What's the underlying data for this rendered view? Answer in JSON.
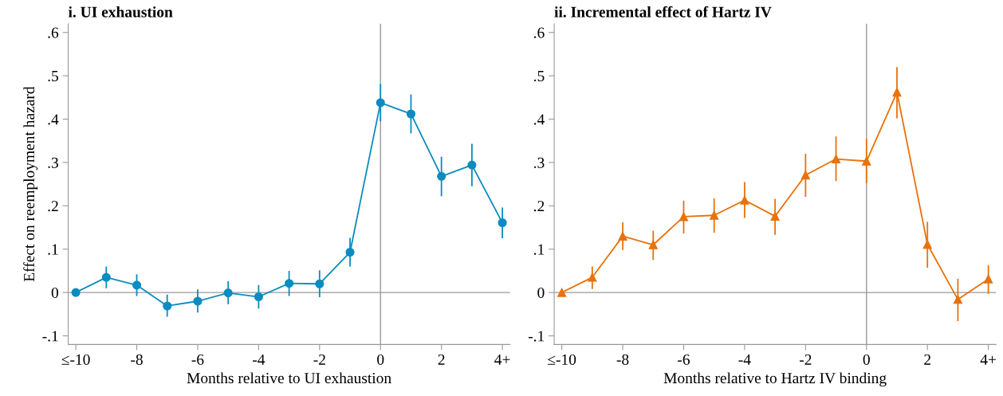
{
  "chart_data": [
    {
      "type": "line",
      "title": "i. UI exhaustion",
      "xlabel": "Months relative to UI exhaustion",
      "ylabel": "Effect on reemployment hazard",
      "marker": "circle",
      "line_style": "solid",
      "grid": false,
      "legend": false,
      "x": [
        -10,
        -9,
        -8,
        -7,
        -6,
        -5,
        -4,
        -3,
        -2,
        -1,
        0,
        1,
        2,
        3,
        4
      ],
      "series": [
        {
          "color": "#0b8cc1",
          "values": [
            0,
            0.035,
            0.017,
            -0.031,
            -0.02,
            -0.001,
            -0.01,
            0.021,
            0.02,
            0.093,
            0.438,
            0.412,
            0.268,
            0.294,
            0.161
          ],
          "errors": [
            null,
            [
              0.01,
              0.06
            ],
            [
              -0.008,
              0.042
            ],
            [
              -0.056,
              -0.005
            ],
            [
              -0.046,
              0.007
            ],
            [
              -0.027,
              0.026
            ],
            [
              -0.037,
              0.017
            ],
            [
              -0.008,
              0.05
            ],
            [
              -0.011,
              0.051
            ],
            [
              0.06,
              0.126
            ],
            [
              0.395,
              0.481
            ],
            [
              0.367,
              0.457
            ],
            [
              0.222,
              0.313
            ],
            [
              0.245,
              0.343
            ],
            [
              0.125,
              0.196
            ]
          ]
        }
      ],
      "xlim": [
        -10.25,
        4.25
      ],
      "ylim": [
        -0.12,
        0.62
      ],
      "xticks": [
        {
          "value": -10,
          "label": "≤-10"
        },
        {
          "value": -8,
          "label": "-8"
        },
        {
          "value": -6,
          "label": "-6"
        },
        {
          "value": -4,
          "label": "-4"
        },
        {
          "value": -2,
          "label": "-2"
        },
        0,
        2,
        {
          "value": 4,
          "label": "4+"
        }
      ],
      "yticks": [
        {
          "value": -0.1,
          "label": "-.1"
        },
        0,
        {
          "value": 0.1,
          "label": ".1"
        },
        {
          "value": 0.2,
          "label": ".2"
        },
        {
          "value": 0.3,
          "label": ".3"
        },
        {
          "value": 0.4,
          "label": ".4"
        },
        {
          "value": 0.5,
          "label": ".5"
        },
        {
          "value": 0.6,
          "label": ".6"
        }
      ],
      "ref_lines": [
        {
          "axis": "x",
          "value": 0,
          "color": "#999999"
        },
        {
          "axis": "y",
          "value": 0,
          "color": "#999999"
        }
      ]
    },
    {
      "type": "line",
      "title": "ii. Incremental effect of Hartz IV",
      "xlabel": "Months relative to Hartz IV binding",
      "marker": "triangle",
      "line_style": "solid",
      "grid": false,
      "legend": false,
      "x": [
        -10,
        -9,
        -8,
        -7,
        -6,
        -5,
        -4,
        -3,
        -2,
        -1,
        0,
        1,
        2,
        3,
        4
      ],
      "series": [
        {
          "color": "#e8720c",
          "values": [
            0,
            0.035,
            0.13,
            0.11,
            0.175,
            0.178,
            0.213,
            0.176,
            0.271,
            0.308,
            0.303,
            0.462,
            0.111,
            -0.016,
            0.031
          ],
          "errors": [
            null,
            [
              0.008,
              0.06
            ],
            [
              0.098,
              0.162
            ],
            [
              0.075,
              0.142
            ],
            [
              0.136,
              0.212
            ],
            [
              0.138,
              0.217
            ],
            [
              0.172,
              0.255
            ],
            [
              0.133,
              0.216
            ],
            [
              0.221,
              0.32
            ],
            [
              0.257,
              0.36
            ],
            [
              0.252,
              0.354
            ],
            [
              0.402,
              0.52
            ],
            [
              0.057,
              0.163
            ],
            [
              -0.066,
              0.032
            ],
            [
              -0.003,
              0.063
            ]
          ]
        }
      ],
      "xlim": [
        -10.25,
        4.25
      ],
      "ylim": [
        -0.12,
        0.62
      ],
      "xticks": [
        {
          "value": -10,
          "label": "≤-10"
        },
        {
          "value": -8,
          "label": "-8"
        },
        {
          "value": -6,
          "label": "-6"
        },
        {
          "value": -4,
          "label": "-4"
        },
        {
          "value": -2,
          "label": "-2"
        },
        0,
        2,
        {
          "value": 4,
          "label": "4+"
        }
      ],
      "yticks": [
        {
          "value": -0.1,
          "label": "-.1"
        },
        0,
        {
          "value": 0.1,
          "label": ".1"
        },
        {
          "value": 0.2,
          "label": ".2"
        },
        {
          "value": 0.3,
          "label": ".3"
        },
        {
          "value": 0.4,
          "label": ".4"
        },
        {
          "value": 0.5,
          "label": ".5"
        },
        {
          "value": 0.6,
          "label": ".6"
        }
      ],
      "ref_lines": [
        {
          "axis": "x",
          "value": 0,
          "color": "#999999"
        },
        {
          "axis": "y",
          "value": 0,
          "color": "#999999"
        }
      ]
    }
  ]
}
